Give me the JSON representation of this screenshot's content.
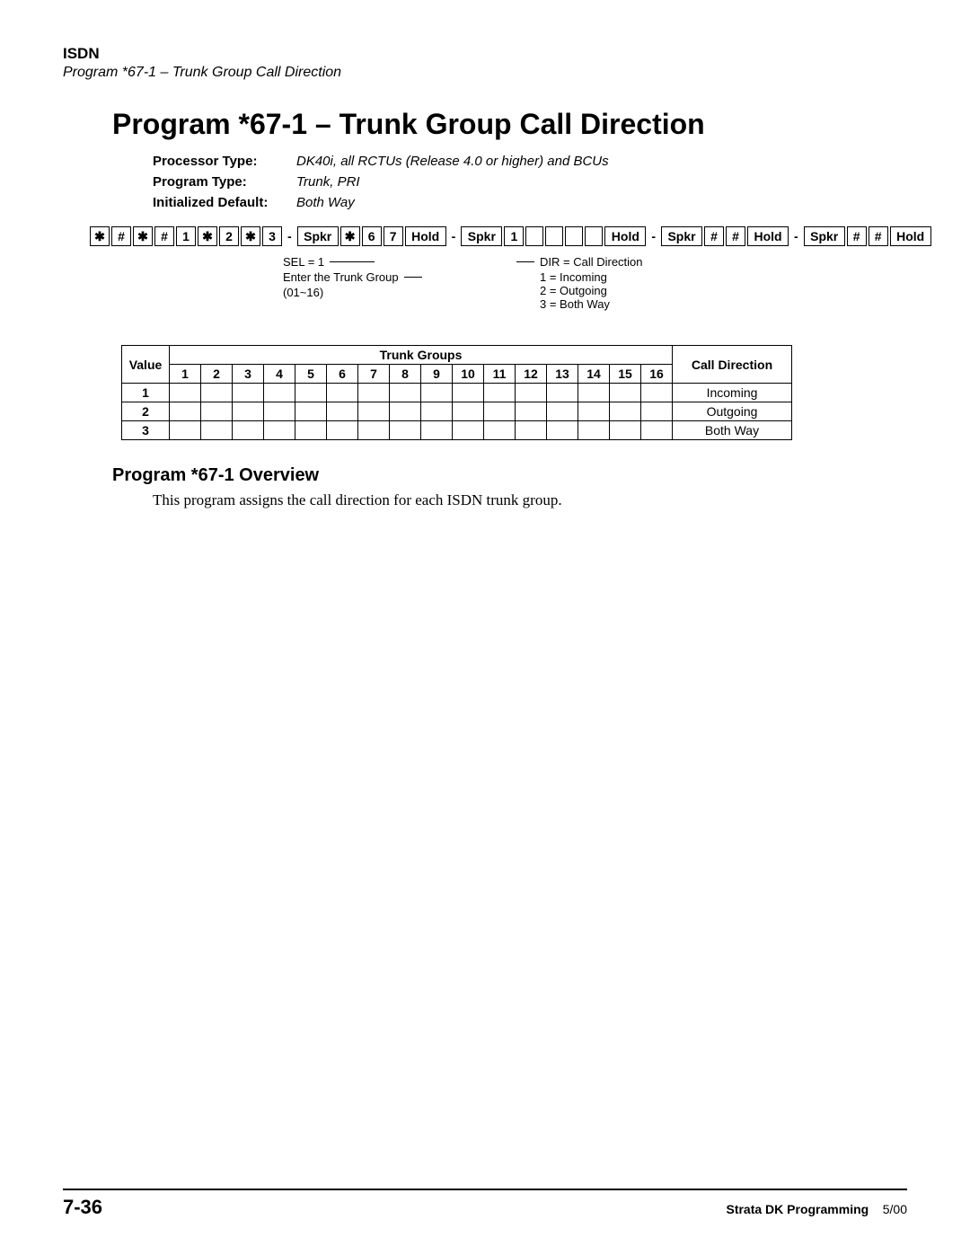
{
  "header": {
    "category": "ISDN",
    "subtitle": "Program *67-1 – Trunk Group Call Direction"
  },
  "title": "Program *67-1 – Trunk Group Call Direction",
  "meta": {
    "processor_type_label": "Processor Type:",
    "processor_type_value": "DK40i, all RCTUs (Release 4.0 or higher) and BCUs",
    "program_type_label": "Program Type:",
    "program_type_value": "Trunk, PRI",
    "init_default_label": "Initialized Default:",
    "init_default_value": "Both Way"
  },
  "keyseq": {
    "keys1": [
      "✱",
      "#",
      "✱",
      "#",
      "1",
      "✱",
      "2",
      "✱",
      "3"
    ],
    "spkr": "Spkr",
    "keys2": [
      "✱",
      "6",
      "7"
    ],
    "hold": "Hold",
    "keys3": [
      "1"
    ],
    "empties": [
      "",
      "",
      "",
      ""
    ],
    "hashhash": [
      "#",
      "#"
    ]
  },
  "annotations": {
    "sel": "SEL = 1",
    "enter1": "Enter the Trunk Group",
    "enter2": "(01~16)",
    "dir": "DIR = Call Direction",
    "d1": "1 = Incoming",
    "d2": "2 = Outgoing",
    "d3": "3 = Both Way"
  },
  "table": {
    "value_header": "Value",
    "trunk_header": "Trunk Groups",
    "cd_header": "Call Direction",
    "group_numbers": [
      "1",
      "2",
      "3",
      "4",
      "5",
      "6",
      "7",
      "8",
      "9",
      "10",
      "11",
      "12",
      "13",
      "14",
      "15",
      "16"
    ],
    "rows": [
      {
        "value": "1",
        "cd": "Incoming"
      },
      {
        "value": "2",
        "cd": "Outgoing"
      },
      {
        "value": "3",
        "cd": "Both Way"
      }
    ]
  },
  "overview": {
    "title": "Program *67-1 Overview",
    "text": "This program assigns the call direction for each ISDN trunk group."
  },
  "footer": {
    "page": "7-36",
    "book": "Strata DK Programming",
    "date": "5/00"
  }
}
